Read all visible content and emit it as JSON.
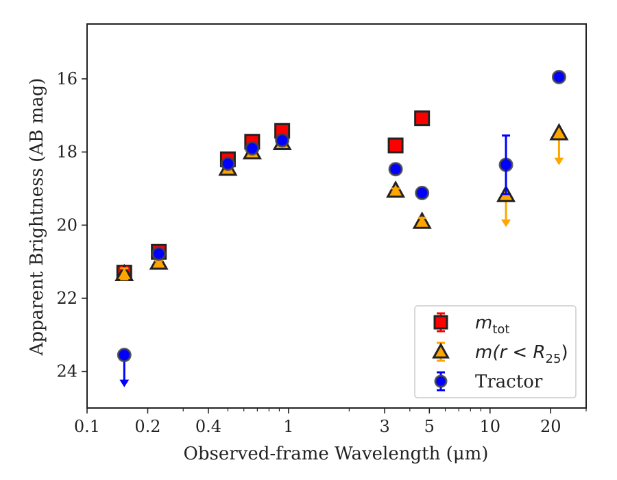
{
  "chart_data": {
    "type": "scatter",
    "xlabel": "Observed-frame Wavelength (μm)",
    "ylabel": "Apparent Brightness (AB mag)",
    "xscale": "log",
    "xlim": [
      0.1,
      30
    ],
    "ylim": [
      25,
      14.5
    ],
    "y_inverted": true,
    "grid": false,
    "legend_placement": "lower-right",
    "x_ticks": [
      {
        "value": 0.1,
        "label": "0.1"
      },
      {
        "value": 0.2,
        "label": "0.2"
      },
      {
        "value": 0.4,
        "label": "0.4"
      },
      {
        "value": 1,
        "label": "1"
      },
      {
        "value": 3,
        "label": "3"
      },
      {
        "value": 5,
        "label": "5"
      },
      {
        "value": 10,
        "label": "10"
      },
      {
        "value": 20,
        "label": "20"
      }
    ],
    "y_ticks": [
      {
        "value": 16,
        "label": "16"
      },
      {
        "value": 18,
        "label": "18"
      },
      {
        "value": 20,
        "label": "20"
      },
      {
        "value": 22,
        "label": "22"
      },
      {
        "value": 24,
        "label": "24"
      }
    ],
    "series": [
      {
        "name": "m_tot",
        "legend_base": "m",
        "legend_sub": "tot",
        "marker": "square",
        "color": "#ff0000",
        "edge_color": "#222222",
        "error_color": "#ff0000",
        "points": [
          {
            "x": 0.153,
            "y": 21.3,
            "err": 0.15
          },
          {
            "x": 0.227,
            "y": 20.73,
            "err": 0.05
          },
          {
            "x": 0.5,
            "y": 18.2,
            "err": 0.05
          },
          {
            "x": 0.66,
            "y": 17.72,
            "err": 0.05
          },
          {
            "x": 0.93,
            "y": 17.42,
            "err": 0.05
          },
          {
            "x": 3.4,
            "y": 17.82,
            "err": 0.05
          },
          {
            "x": 4.6,
            "y": 17.08,
            "err": 0.05
          }
        ]
      },
      {
        "name": "m(r<R_25)",
        "legend_base": "m(r < R",
        "legend_sub": "25",
        "legend_tail": ")",
        "marker": "triangle",
        "color": "#ffa500",
        "edge_color": "#222222",
        "error_color": "#ffa500",
        "points": [
          {
            "x": 0.153,
            "y": 21.33,
            "err": 0.15
          },
          {
            "x": 0.227,
            "y": 21.02,
            "err": 0.05
          },
          {
            "x": 0.5,
            "y": 18.45,
            "err": 0.05
          },
          {
            "x": 0.66,
            "y": 18.0,
            "err": 0.05
          },
          {
            "x": 0.93,
            "y": 17.75,
            "err": 0.05
          },
          {
            "x": 3.4,
            "y": 19.05,
            "err": 0.05
          },
          {
            "x": 4.6,
            "y": 19.9,
            "err": 0.1
          },
          {
            "x": 12.0,
            "y": 19.17,
            "upper_limit": true
          },
          {
            "x": 22.0,
            "y": 17.48,
            "upper_limit": true
          }
        ]
      },
      {
        "name": "Tractor",
        "marker": "circle",
        "color": "#0000ff",
        "edge_color": "#444444",
        "error_color": "#0000ff",
        "points": [
          {
            "x": 0.153,
            "y": 23.55,
            "upper_limit": true
          },
          {
            "x": 0.227,
            "y": 20.78,
            "err": 0.05
          },
          {
            "x": 0.5,
            "y": 18.32,
            "err": 0.05
          },
          {
            "x": 0.66,
            "y": 17.9,
            "err": 0.05
          },
          {
            "x": 0.93,
            "y": 17.68,
            "err": 0.05
          },
          {
            "x": 3.4,
            "y": 18.47,
            "err": 0.05
          },
          {
            "x": 4.6,
            "y": 19.12,
            "err": 0.05
          },
          {
            "x": 12.0,
            "y": 18.35,
            "err": 0.8
          },
          {
            "x": 22.0,
            "y": 15.95,
            "err": 0.05
          }
        ]
      }
    ]
  }
}
